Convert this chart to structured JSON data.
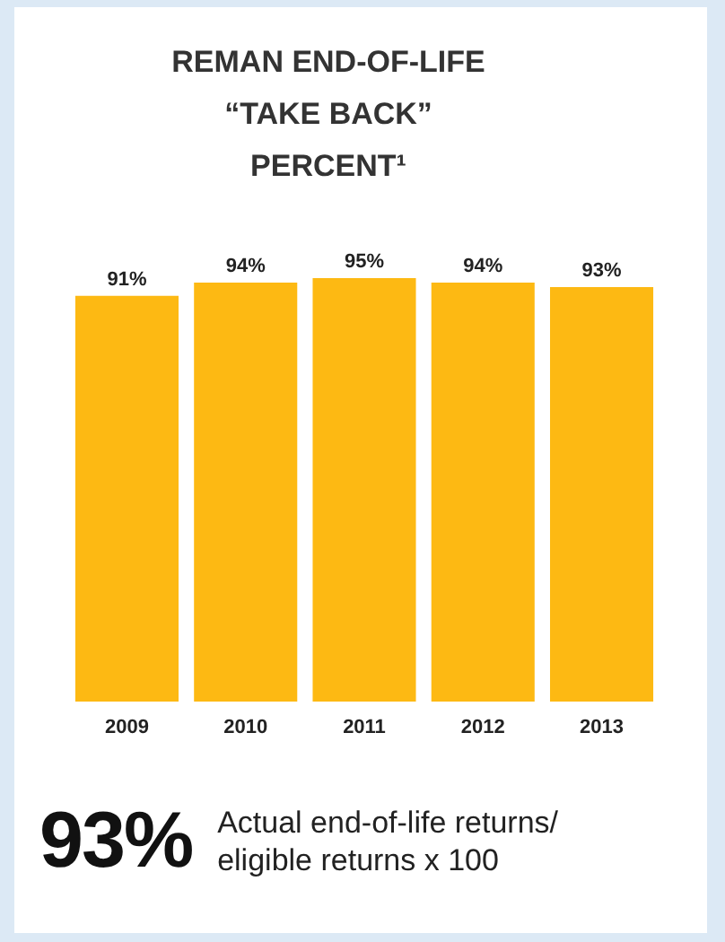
{
  "chart_data": {
    "type": "bar",
    "title": "REMAN END-OF-LIFE “TAKE BACK” PERCENT¹",
    "categories": [
      "2009",
      "2010",
      "2011",
      "2012",
      "2013"
    ],
    "values": [
      91,
      94,
      95,
      94,
      93
    ],
    "value_labels": [
      "91%",
      "94%",
      "95%",
      "94%",
      "93%"
    ],
    "color": "#fdb913",
    "annotations": [
      "93%",
      "Actual end-of-life returns/ eligible returns x 100"
    ]
  }
}
